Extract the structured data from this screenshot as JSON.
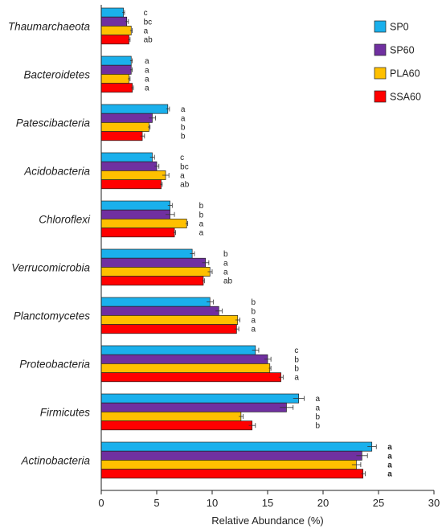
{
  "chart_data": {
    "type": "bar",
    "orientation": "horizontal",
    "xlabel": "Relative Abundance (%)",
    "xlim": [
      0,
      30
    ],
    "xticks": [
      0,
      5,
      10,
      15,
      20,
      25,
      30
    ],
    "grid": false,
    "legend_position": "top-right",
    "categories": [
      "Thaumarchaeota",
      "Bacteroidetes",
      "Patescibacteria",
      "Acidobacteria",
      "Chloroflexi",
      "Verrucomicrobia",
      "Planctomycetes",
      "Proteobacteria",
      "Firmicutes",
      "Actinobacteria"
    ],
    "series": [
      {
        "name": "SP0",
        "color": "#1ab0ec",
        "values": [
          2.0,
          2.7,
          6.0,
          4.6,
          6.2,
          8.2,
          9.8,
          13.9,
          17.8,
          24.4
        ],
        "errors": [
          0.1,
          0.1,
          0.15,
          0.2,
          0.2,
          0.2,
          0.3,
          0.3,
          0.5,
          0.4
        ],
        "letters": [
          "c",
          "a",
          "a",
          "c",
          "b",
          "b",
          "b",
          "c",
          "a",
          "a"
        ]
      },
      {
        "name": "SP60",
        "color": "#7030a0",
        "values": [
          2.3,
          2.7,
          4.6,
          5.0,
          6.2,
          9.4,
          10.6,
          15.0,
          16.7,
          23.5
        ],
        "errors": [
          0.15,
          0.1,
          0.3,
          0.2,
          0.4,
          0.3,
          0.3,
          0.3,
          0.6,
          0.5
        ],
        "letters": [
          "bc",
          "a",
          "a",
          "bc",
          "b",
          "a",
          "b",
          "b",
          "a",
          "a"
        ]
      },
      {
        "name": "PLA60",
        "color": "#ffc000",
        "values": [
          2.7,
          2.5,
          4.3,
          5.8,
          7.7,
          9.8,
          12.3,
          15.2,
          12.6,
          23.0
        ],
        "errors": [
          0.1,
          0.1,
          0.1,
          0.3,
          0.1,
          0.2,
          0.2,
          0.1,
          0.2,
          0.4
        ],
        "letters": [
          "a",
          "a",
          "b",
          "a",
          "a",
          "a",
          "a",
          "b",
          "b",
          "a"
        ]
      },
      {
        "name": "SSA60",
        "color": "#ff0000",
        "values": [
          2.5,
          2.8,
          3.7,
          5.4,
          6.6,
          9.2,
          12.2,
          16.2,
          13.6,
          23.6
        ],
        "errors": [
          0.1,
          0.1,
          0.2,
          0.1,
          0.1,
          0.1,
          0.2,
          0.2,
          0.3,
          0.2
        ],
        "letters": [
          "ab",
          "a",
          "b",
          "ab",
          "a",
          "ab",
          "a",
          "a",
          "b",
          "a"
        ]
      }
    ],
    "bold_letter_categories": [
      "Actinobacteria"
    ]
  }
}
